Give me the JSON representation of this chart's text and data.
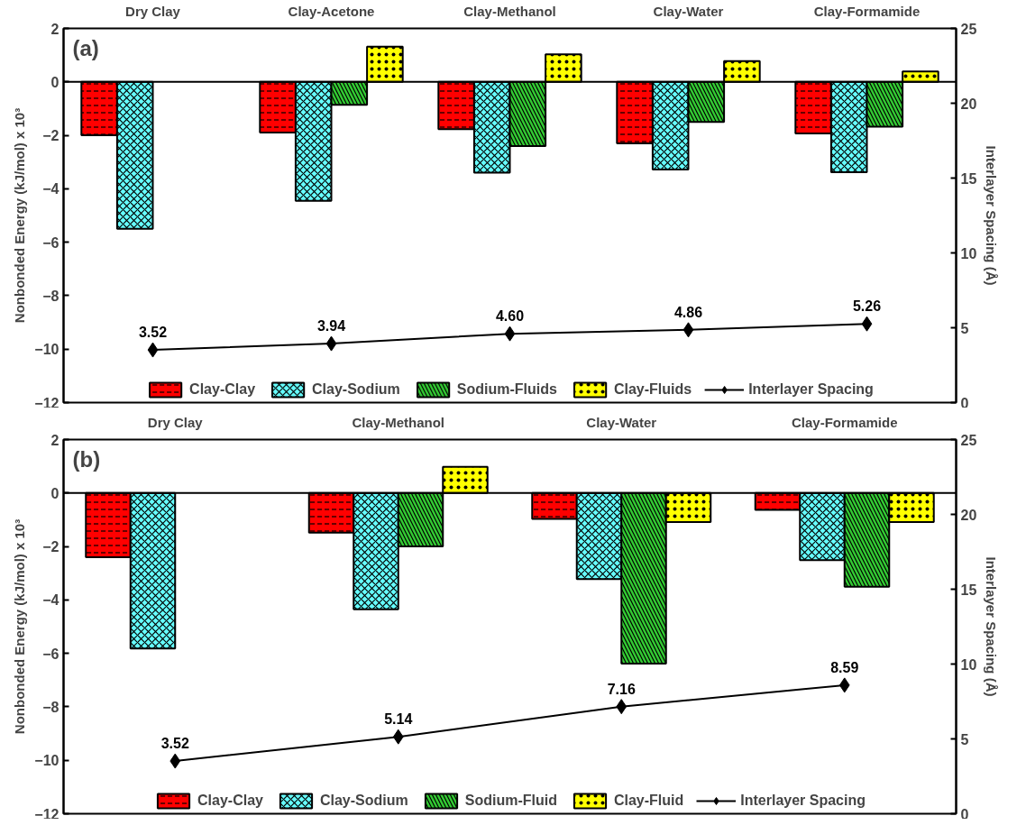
{
  "chart_data": [
    {
      "type": "bar",
      "categories": [
        "Dry Clay",
        "Clay-Acetone",
        "Clay-Methanol",
        "Clay-Water",
        "Clay-Formamide"
      ],
      "ylabel": "Nonbonded Energy (kJ/mol) x 10³",
      "y2label": "Interlayer Spacing (Å)",
      "ylim": [
        -12,
        2
      ],
      "yticks": [
        -12,
        -10,
        -8,
        -6,
        -4,
        -2,
        0,
        2
      ],
      "y2lim": [
        0,
        25
      ],
      "y2ticks": [
        0,
        5,
        10,
        15,
        20,
        25
      ],
      "grid": false,
      "legend": "bottom",
      "annotations": [
        "(a)"
      ],
      "ref_lines": [
        {
          "axis": "y",
          "value": 0,
          "color": "#000000"
        }
      ],
      "series": [
        {
          "name": "Clay-Clay",
          "color": "#ff0000",
          "values": [
            -2.0,
            -1.9,
            -1.77,
            -2.3,
            -1.93
          ]
        },
        {
          "name": "Clay-Sodium",
          "color": "#66ffff",
          "values": [
            -5.5,
            -4.45,
            -3.4,
            -3.28,
            -3.38
          ]
        },
        {
          "name": "Sodium-Fluids",
          "color": "#33cc33",
          "values": [
            null,
            -0.86,
            -2.4,
            -1.5,
            -1.68
          ]
        },
        {
          "name": "Clay-Fluids",
          "color": "#ffff00",
          "values": [
            null,
            1.32,
            1.03,
            0.78,
            0.39
          ]
        },
        {
          "name": "Interlayer Spacing",
          "color": "#000000",
          "type": "line",
          "axis": "y2",
          "marker": "diamond",
          "values": [
            3.52,
            3.94,
            4.6,
            4.86,
            5.26
          ],
          "value_labels": [
            "3.52",
            "3.94",
            "4.60",
            "4.86",
            "5.26"
          ]
        }
      ]
    },
    {
      "type": "bar",
      "categories": [
        "Dry Clay",
        "Clay-Methanol",
        "Clay-Water",
        "Clay-Formamide"
      ],
      "ylabel": "Nonbonded Energy (kJ/mol) x 10³",
      "y2label": "Interlayer Spacing (Å)",
      "ylim": [
        -12,
        2
      ],
      "yticks": [
        -12,
        -10,
        -8,
        -6,
        -4,
        -2,
        0,
        2
      ],
      "y2lim": [
        0,
        25
      ],
      "y2ticks": [
        0,
        5,
        10,
        15,
        20,
        25
      ],
      "grid": false,
      "legend": "bottom",
      "annotations": [
        "(b)"
      ],
      "ref_lines": [
        {
          "axis": "y",
          "value": 0,
          "color": "#000000"
        }
      ],
      "series": [
        {
          "name": "Clay-Clay",
          "color": "#ff0000",
          "values": [
            -2.4,
            -1.48,
            -0.97,
            -0.63
          ]
        },
        {
          "name": "Clay-Sodium",
          "color": "#66ffff",
          "values": [
            -5.82,
            -4.35,
            -3.22,
            -2.51
          ]
        },
        {
          "name": "Sodium-Fluid",
          "color": "#33cc33",
          "values": [
            null,
            -2.0,
            -6.38,
            -3.51
          ]
        },
        {
          "name": "Clay-Fluid",
          "color": "#ffff00",
          "values": [
            null,
            0.98,
            -1.09,
            -1.09
          ]
        },
        {
          "name": "Interlayer Spacing",
          "color": "#000000",
          "type": "line",
          "axis": "y2",
          "marker": "diamond",
          "values": [
            3.52,
            5.14,
            7.16,
            8.59
          ],
          "value_labels": [
            "3.52",
            "5.14",
            "7.16",
            "8.59"
          ]
        }
      ]
    }
  ]
}
